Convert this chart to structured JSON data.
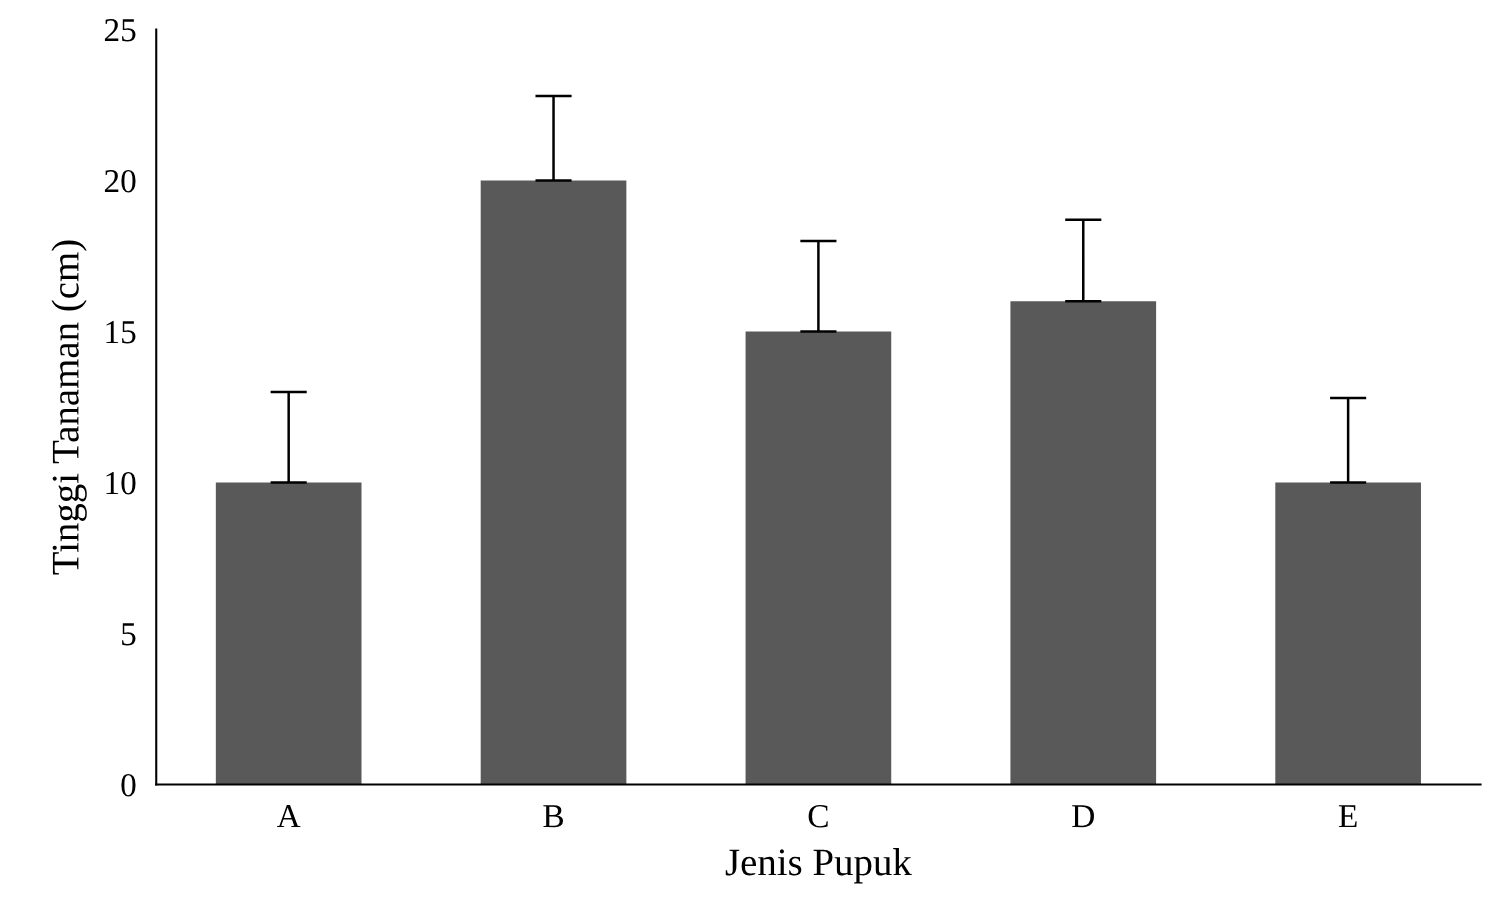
{
  "chart_data": {
    "type": "bar",
    "xlabel": "Jenis Pupuk",
    "ylabel": "Tinggi Tanaman (cm)",
    "categories": [
      "A",
      "B",
      "C",
      "D",
      "E"
    ],
    "values": [
      10,
      20,
      15,
      16,
      10
    ],
    "errors": [
      [
        10,
        13
      ],
      [
        20,
        22.8
      ],
      [
        15,
        18
      ],
      [
        16,
        18.7
      ],
      [
        10,
        12.8
      ]
    ],
    "color": "#595959",
    "ylim": [
      0,
      25
    ],
    "yticks": [
      0,
      5,
      10,
      15,
      20,
      25
    ],
    "grid": false,
    "legend": false
  }
}
